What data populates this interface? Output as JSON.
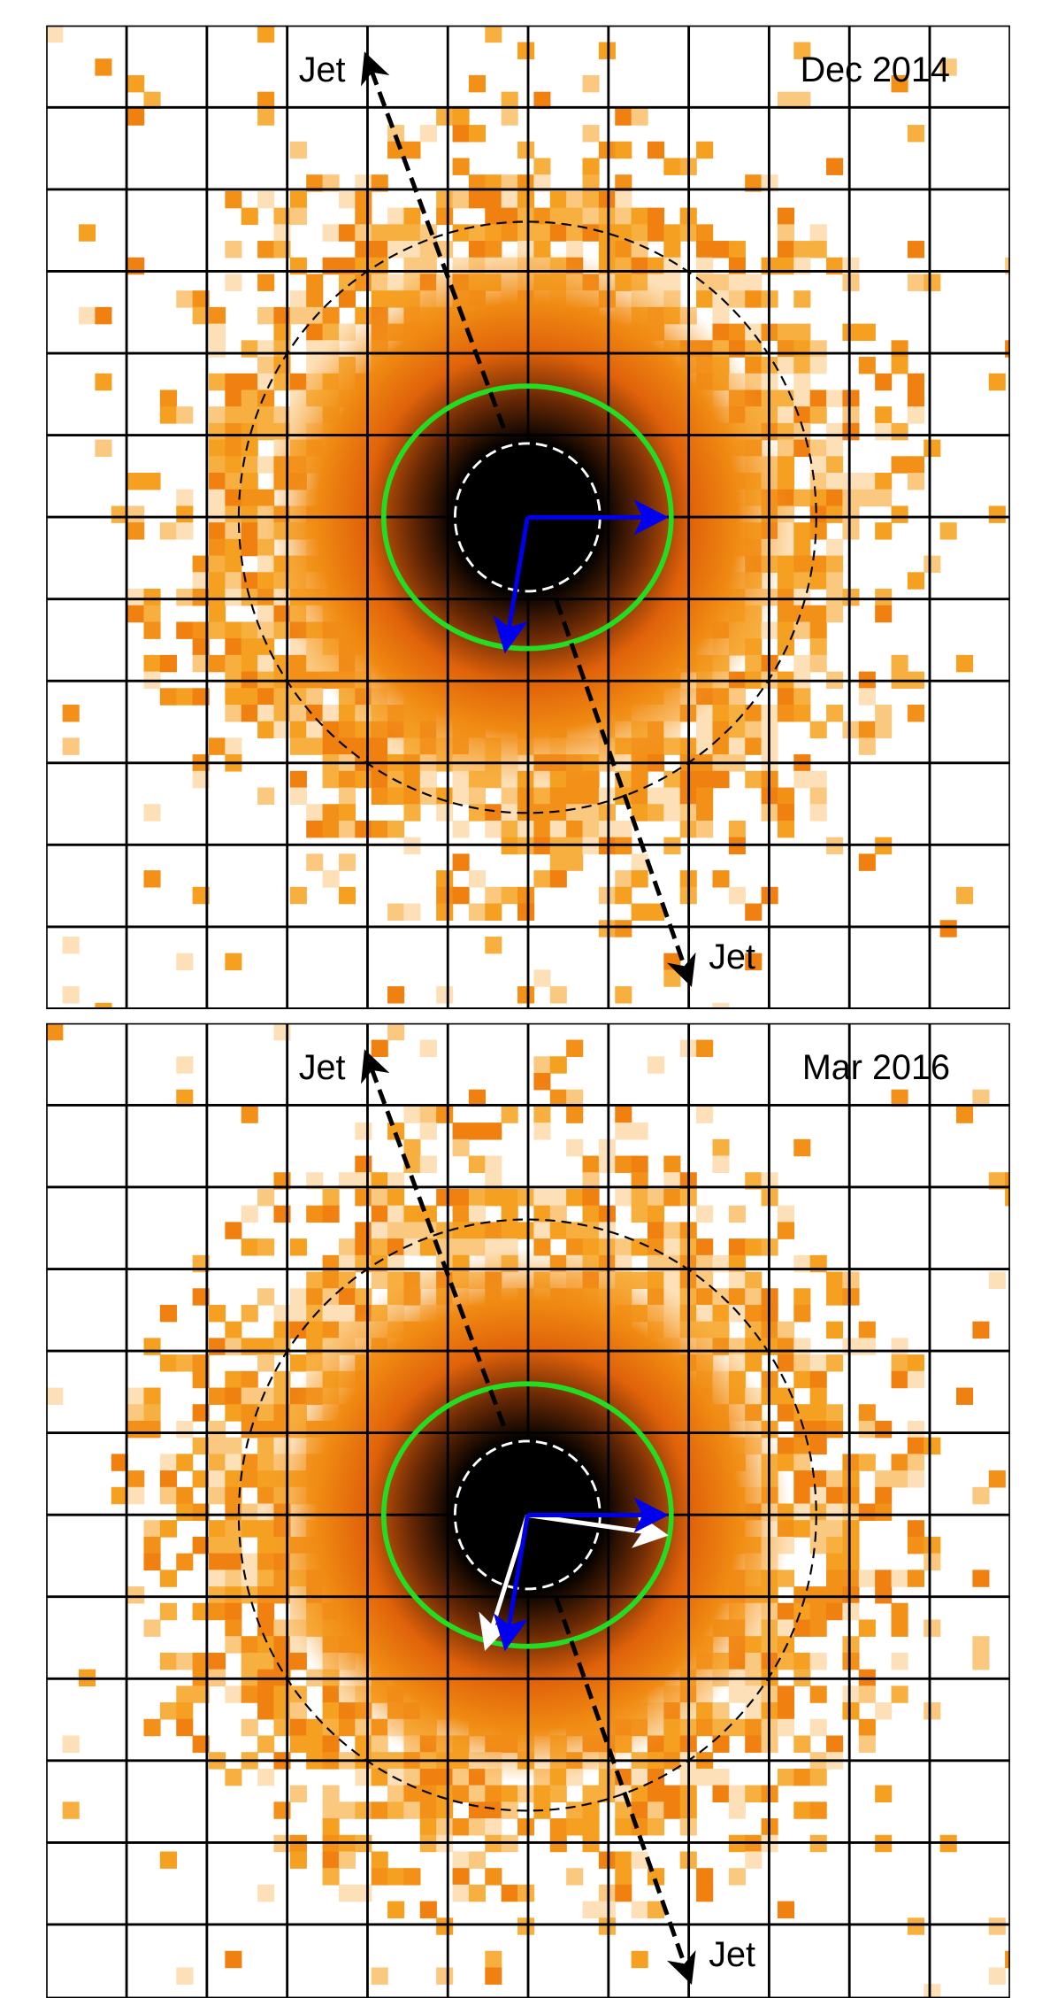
{
  "panels": [
    {
      "date": "Dec 2014",
      "jet_labels": [
        "Jet",
        "Jet"
      ]
    },
    {
      "date": "Mar 2016",
      "jet_labels": [
        "Jet",
        "Jet"
      ]
    }
  ]
}
